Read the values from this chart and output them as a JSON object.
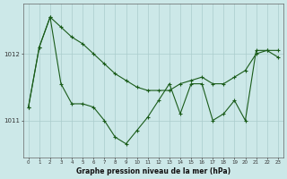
{
  "title": "Graphe pression niveau de la mer (hPa)",
  "background_color": "#cce8e8",
  "grid_color": "#aacccc",
  "line_color": "#1a5c1a",
  "xlim": [
    -0.5,
    23.5
  ],
  "ylim": [
    1010.45,
    1012.75
  ],
  "yticks": [
    1011,
    1012
  ],
  "hours": [
    0,
    1,
    2,
    3,
    4,
    5,
    6,
    7,
    8,
    9,
    10,
    11,
    12,
    13,
    14,
    15,
    16,
    17,
    18,
    19,
    20,
    21,
    22,
    23
  ],
  "series1_smooth": [
    1011.2,
    1012.1,
    1012.55,
    1012.4,
    1012.25,
    1012.15,
    1012.0,
    1011.85,
    1011.7,
    1011.6,
    1011.5,
    1011.45,
    1011.45,
    1011.45,
    1011.55,
    1011.6,
    1011.65,
    1011.55,
    1011.55,
    1011.65,
    1011.75,
    1012.0,
    1012.05,
    1011.95
  ],
  "series2_jagged": [
    1011.2,
    1012.1,
    1012.55,
    1011.55,
    1011.25,
    1011.25,
    1011.2,
    1011.0,
    1010.75,
    1010.65,
    1010.85,
    1011.05,
    1011.3,
    1011.55,
    1011.1,
    1011.55,
    1011.55,
    1011.0,
    1011.1,
    1011.3,
    1011.0,
    1012.05,
    1012.05,
    1012.05
  ]
}
